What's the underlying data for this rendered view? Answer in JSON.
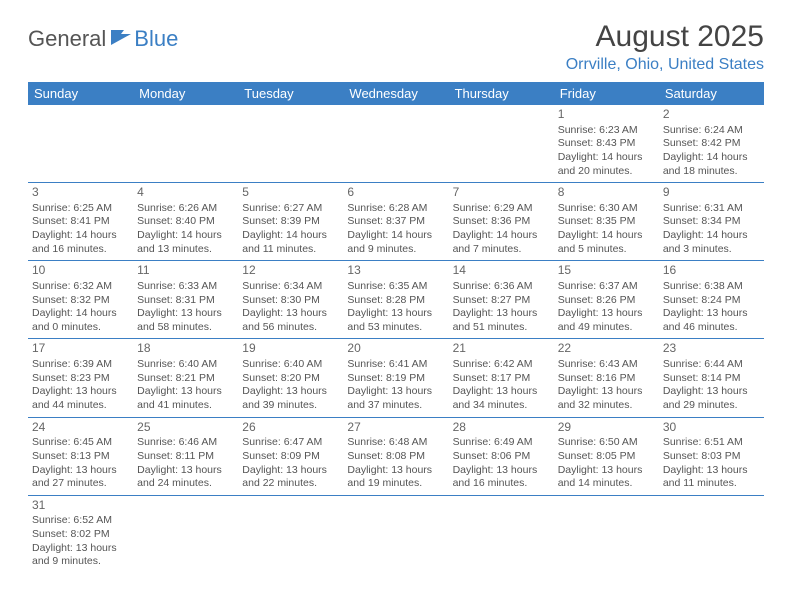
{
  "logo": {
    "general": "General",
    "blue": "Blue"
  },
  "title": "August 2025",
  "location": "Orrville, Ohio, United States",
  "colors": {
    "accent": "#3b7fc4",
    "text": "#555555",
    "bg": "#ffffff"
  },
  "dayHeaders": [
    "Sunday",
    "Monday",
    "Tuesday",
    "Wednesday",
    "Thursday",
    "Friday",
    "Saturday"
  ],
  "weeks": [
    [
      null,
      null,
      null,
      null,
      null,
      {
        "n": "1",
        "sr": "Sunrise: 6:23 AM",
        "ss": "Sunset: 8:43 PM",
        "dl": "Daylight: 14 hours and 20 minutes."
      },
      {
        "n": "2",
        "sr": "Sunrise: 6:24 AM",
        "ss": "Sunset: 8:42 PM",
        "dl": "Daylight: 14 hours and 18 minutes."
      }
    ],
    [
      {
        "n": "3",
        "sr": "Sunrise: 6:25 AM",
        "ss": "Sunset: 8:41 PM",
        "dl": "Daylight: 14 hours and 16 minutes."
      },
      {
        "n": "4",
        "sr": "Sunrise: 6:26 AM",
        "ss": "Sunset: 8:40 PM",
        "dl": "Daylight: 14 hours and 13 minutes."
      },
      {
        "n": "5",
        "sr": "Sunrise: 6:27 AM",
        "ss": "Sunset: 8:39 PM",
        "dl": "Daylight: 14 hours and 11 minutes."
      },
      {
        "n": "6",
        "sr": "Sunrise: 6:28 AM",
        "ss": "Sunset: 8:37 PM",
        "dl": "Daylight: 14 hours and 9 minutes."
      },
      {
        "n": "7",
        "sr": "Sunrise: 6:29 AM",
        "ss": "Sunset: 8:36 PM",
        "dl": "Daylight: 14 hours and 7 minutes."
      },
      {
        "n": "8",
        "sr": "Sunrise: 6:30 AM",
        "ss": "Sunset: 8:35 PM",
        "dl": "Daylight: 14 hours and 5 minutes."
      },
      {
        "n": "9",
        "sr": "Sunrise: 6:31 AM",
        "ss": "Sunset: 8:34 PM",
        "dl": "Daylight: 14 hours and 3 minutes."
      }
    ],
    [
      {
        "n": "10",
        "sr": "Sunrise: 6:32 AM",
        "ss": "Sunset: 8:32 PM",
        "dl": "Daylight: 14 hours and 0 minutes."
      },
      {
        "n": "11",
        "sr": "Sunrise: 6:33 AM",
        "ss": "Sunset: 8:31 PM",
        "dl": "Daylight: 13 hours and 58 minutes."
      },
      {
        "n": "12",
        "sr": "Sunrise: 6:34 AM",
        "ss": "Sunset: 8:30 PM",
        "dl": "Daylight: 13 hours and 56 minutes."
      },
      {
        "n": "13",
        "sr": "Sunrise: 6:35 AM",
        "ss": "Sunset: 8:28 PM",
        "dl": "Daylight: 13 hours and 53 minutes."
      },
      {
        "n": "14",
        "sr": "Sunrise: 6:36 AM",
        "ss": "Sunset: 8:27 PM",
        "dl": "Daylight: 13 hours and 51 minutes."
      },
      {
        "n": "15",
        "sr": "Sunrise: 6:37 AM",
        "ss": "Sunset: 8:26 PM",
        "dl": "Daylight: 13 hours and 49 minutes."
      },
      {
        "n": "16",
        "sr": "Sunrise: 6:38 AM",
        "ss": "Sunset: 8:24 PM",
        "dl": "Daylight: 13 hours and 46 minutes."
      }
    ],
    [
      {
        "n": "17",
        "sr": "Sunrise: 6:39 AM",
        "ss": "Sunset: 8:23 PM",
        "dl": "Daylight: 13 hours and 44 minutes."
      },
      {
        "n": "18",
        "sr": "Sunrise: 6:40 AM",
        "ss": "Sunset: 8:21 PM",
        "dl": "Daylight: 13 hours and 41 minutes."
      },
      {
        "n": "19",
        "sr": "Sunrise: 6:40 AM",
        "ss": "Sunset: 8:20 PM",
        "dl": "Daylight: 13 hours and 39 minutes."
      },
      {
        "n": "20",
        "sr": "Sunrise: 6:41 AM",
        "ss": "Sunset: 8:19 PM",
        "dl": "Daylight: 13 hours and 37 minutes."
      },
      {
        "n": "21",
        "sr": "Sunrise: 6:42 AM",
        "ss": "Sunset: 8:17 PM",
        "dl": "Daylight: 13 hours and 34 minutes."
      },
      {
        "n": "22",
        "sr": "Sunrise: 6:43 AM",
        "ss": "Sunset: 8:16 PM",
        "dl": "Daylight: 13 hours and 32 minutes."
      },
      {
        "n": "23",
        "sr": "Sunrise: 6:44 AM",
        "ss": "Sunset: 8:14 PM",
        "dl": "Daylight: 13 hours and 29 minutes."
      }
    ],
    [
      {
        "n": "24",
        "sr": "Sunrise: 6:45 AM",
        "ss": "Sunset: 8:13 PM",
        "dl": "Daylight: 13 hours and 27 minutes."
      },
      {
        "n": "25",
        "sr": "Sunrise: 6:46 AM",
        "ss": "Sunset: 8:11 PM",
        "dl": "Daylight: 13 hours and 24 minutes."
      },
      {
        "n": "26",
        "sr": "Sunrise: 6:47 AM",
        "ss": "Sunset: 8:09 PM",
        "dl": "Daylight: 13 hours and 22 minutes."
      },
      {
        "n": "27",
        "sr": "Sunrise: 6:48 AM",
        "ss": "Sunset: 8:08 PM",
        "dl": "Daylight: 13 hours and 19 minutes."
      },
      {
        "n": "28",
        "sr": "Sunrise: 6:49 AM",
        "ss": "Sunset: 8:06 PM",
        "dl": "Daylight: 13 hours and 16 minutes."
      },
      {
        "n": "29",
        "sr": "Sunrise: 6:50 AM",
        "ss": "Sunset: 8:05 PM",
        "dl": "Daylight: 13 hours and 14 minutes."
      },
      {
        "n": "30",
        "sr": "Sunrise: 6:51 AM",
        "ss": "Sunset: 8:03 PM",
        "dl": "Daylight: 13 hours and 11 minutes."
      }
    ],
    [
      {
        "n": "31",
        "sr": "Sunrise: 6:52 AM",
        "ss": "Sunset: 8:02 PM",
        "dl": "Daylight: 13 hours and 9 minutes."
      },
      null,
      null,
      null,
      null,
      null,
      null
    ]
  ]
}
